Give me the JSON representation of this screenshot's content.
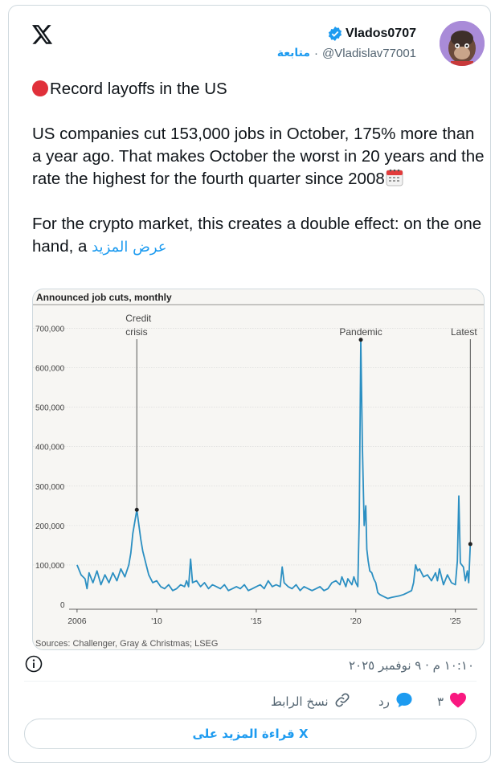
{
  "tweet": {
    "display_name": "Vlados0707",
    "handle": "@Vladislav77001",
    "follow_label": "متابعة",
    "handle_separator": "·",
    "line1": "Record layoffs in the US",
    "paragraph2": "US companies cut 153,000 jobs in October, 175% more than a year ago. That makes October the worst in 20 years and the rate the highest for the fourth quarter since 2008",
    "paragraph3": "For the crypto market, this creates a double effect: on the one hand, a",
    "show_more": "عرض المزيد",
    "timestamp": "١٠:١٠ م · ٩ نوفمبر ٢٠٢٥",
    "icons": {
      "logo": "x-logo-icon",
      "verified": "verified-badge-icon",
      "record_dot": "red-circle-emoji",
      "calendar": "calendar-emoji",
      "info": "info-icon"
    },
    "colors": {
      "accent": "#1d9bf0",
      "like": "#f91880",
      "text": "#0f1419",
      "muted": "#536471"
    }
  },
  "actions": {
    "like_count": "٣",
    "reply_label": "رد",
    "copy_link_label": "نسخ الرابط"
  },
  "read_more_label": "قراءة المزيد على X",
  "chart_data": {
    "type": "line",
    "title": "Announced job cuts, monthly",
    "source": "Sources: Challenger, Gray & Christmas; LSEG",
    "ylim": [
      0,
      750000
    ],
    "yticks": [
      0,
      100000,
      200000,
      300000,
      400000,
      500000,
      600000,
      700000
    ],
    "ytick_labels": [
      "0",
      "100,000",
      "200,000",
      "300,000",
      "400,000",
      "500,000",
      "600,000",
      "700,000"
    ],
    "xticks": [
      2006,
      2010,
      2015,
      2020,
      2025
    ],
    "xtick_labels": [
      "2006",
      "'10",
      "'15",
      "'20",
      "'25"
    ],
    "xlim": [
      2005.6,
      2026.1
    ],
    "color": "#2b8fc2",
    "annotations": [
      {
        "label": "Credit crisis",
        "x": 2009.0,
        "y": 240000
      },
      {
        "label": "Pandemic",
        "x": 2020.25,
        "y": 671000
      },
      {
        "label": "Latest",
        "x": 2025.75,
        "y": 153000
      }
    ],
    "series": [
      {
        "values": [
          [
            2006.0,
            100000
          ],
          [
            2006.2,
            75000
          ],
          [
            2006.4,
            65000
          ],
          [
            2006.5,
            40000
          ],
          [
            2006.6,
            80000
          ],
          [
            2006.8,
            55000
          ],
          [
            2007.0,
            85000
          ],
          [
            2007.2,
            50000
          ],
          [
            2007.4,
            75000
          ],
          [
            2007.6,
            55000
          ],
          [
            2007.8,
            80000
          ],
          [
            2008.0,
            60000
          ],
          [
            2008.2,
            90000
          ],
          [
            2008.4,
            70000
          ],
          [
            2008.6,
            100000
          ],
          [
            2008.7,
            130000
          ],
          [
            2008.8,
            180000
          ],
          [
            2009.0,
            240000
          ],
          [
            2009.2,
            165000
          ],
          [
            2009.3,
            135000
          ],
          [
            2009.5,
            95000
          ],
          [
            2009.6,
            75000
          ],
          [
            2009.8,
            55000
          ],
          [
            2010.0,
            60000
          ],
          [
            2010.2,
            45000
          ],
          [
            2010.4,
            40000
          ],
          [
            2010.6,
            50000
          ],
          [
            2010.8,
            35000
          ],
          [
            2011.0,
            40000
          ],
          [
            2011.2,
            50000
          ],
          [
            2011.4,
            45000
          ],
          [
            2011.5,
            60000
          ],
          [
            2011.6,
            45000
          ],
          [
            2011.7,
            115000
          ],
          [
            2011.8,
            55000
          ],
          [
            2012.0,
            60000
          ],
          [
            2012.2,
            45000
          ],
          [
            2012.4,
            55000
          ],
          [
            2012.6,
            40000
          ],
          [
            2012.8,
            50000
          ],
          [
            2013.0,
            45000
          ],
          [
            2013.2,
            40000
          ],
          [
            2013.4,
            50000
          ],
          [
            2013.6,
            35000
          ],
          [
            2013.8,
            40000
          ],
          [
            2014.0,
            45000
          ],
          [
            2014.2,
            40000
          ],
          [
            2014.4,
            50000
          ],
          [
            2014.6,
            35000
          ],
          [
            2014.8,
            40000
          ],
          [
            2015.0,
            45000
          ],
          [
            2015.2,
            50000
          ],
          [
            2015.4,
            40000
          ],
          [
            2015.6,
            60000
          ],
          [
            2015.8,
            45000
          ],
          [
            2016.0,
            50000
          ],
          [
            2016.2,
            45000
          ],
          [
            2016.3,
            95000
          ],
          [
            2016.4,
            55000
          ],
          [
            2016.6,
            45000
          ],
          [
            2016.8,
            40000
          ],
          [
            2017.0,
            50000
          ],
          [
            2017.2,
            35000
          ],
          [
            2017.4,
            45000
          ],
          [
            2017.6,
            40000
          ],
          [
            2017.8,
            35000
          ],
          [
            2018.0,
            40000
          ],
          [
            2018.2,
            45000
          ],
          [
            2018.4,
            35000
          ],
          [
            2018.6,
            40000
          ],
          [
            2018.8,
            55000
          ],
          [
            2019.0,
            60000
          ],
          [
            2019.2,
            50000
          ],
          [
            2019.3,
            70000
          ],
          [
            2019.5,
            45000
          ],
          [
            2019.6,
            65000
          ],
          [
            2019.8,
            50000
          ],
          [
            2019.9,
            70000
          ],
          [
            2020.0,
            55000
          ],
          [
            2020.1,
            45000
          ],
          [
            2020.17,
            220000
          ],
          [
            2020.25,
            671000
          ],
          [
            2020.33,
            400000
          ],
          [
            2020.42,
            200000
          ],
          [
            2020.5,
            250000
          ],
          [
            2020.55,
            140000
          ],
          [
            2020.62,
            110000
          ],
          [
            2020.7,
            85000
          ],
          [
            2020.8,
            80000
          ],
          [
            2020.9,
            65000
          ],
          [
            2021.0,
            55000
          ],
          [
            2021.1,
            30000
          ],
          [
            2021.2,
            25000
          ],
          [
            2021.4,
            20000
          ],
          [
            2021.6,
            15000
          ],
          [
            2021.8,
            18000
          ],
          [
            2022.0,
            20000
          ],
          [
            2022.2,
            22000
          ],
          [
            2022.4,
            25000
          ],
          [
            2022.6,
            30000
          ],
          [
            2022.8,
            35000
          ],
          [
            2022.9,
            55000
          ],
          [
            2023.0,
            100000
          ],
          [
            2023.1,
            85000
          ],
          [
            2023.2,
            90000
          ],
          [
            2023.4,
            70000
          ],
          [
            2023.6,
            75000
          ],
          [
            2023.8,
            60000
          ],
          [
            2024.0,
            80000
          ],
          [
            2024.1,
            60000
          ],
          [
            2024.2,
            90000
          ],
          [
            2024.4,
            50000
          ],
          [
            2024.6,
            75000
          ],
          [
            2024.8,
            55000
          ],
          [
            2025.0,
            50000
          ],
          [
            2025.1,
            110000
          ],
          [
            2025.17,
            275000
          ],
          [
            2025.25,
            105000
          ],
          [
            2025.4,
            95000
          ],
          [
            2025.5,
            60000
          ],
          [
            2025.6,
            85000
          ],
          [
            2025.67,
            55000
          ],
          [
            2025.75,
            153000
          ]
        ]
      }
    ]
  }
}
